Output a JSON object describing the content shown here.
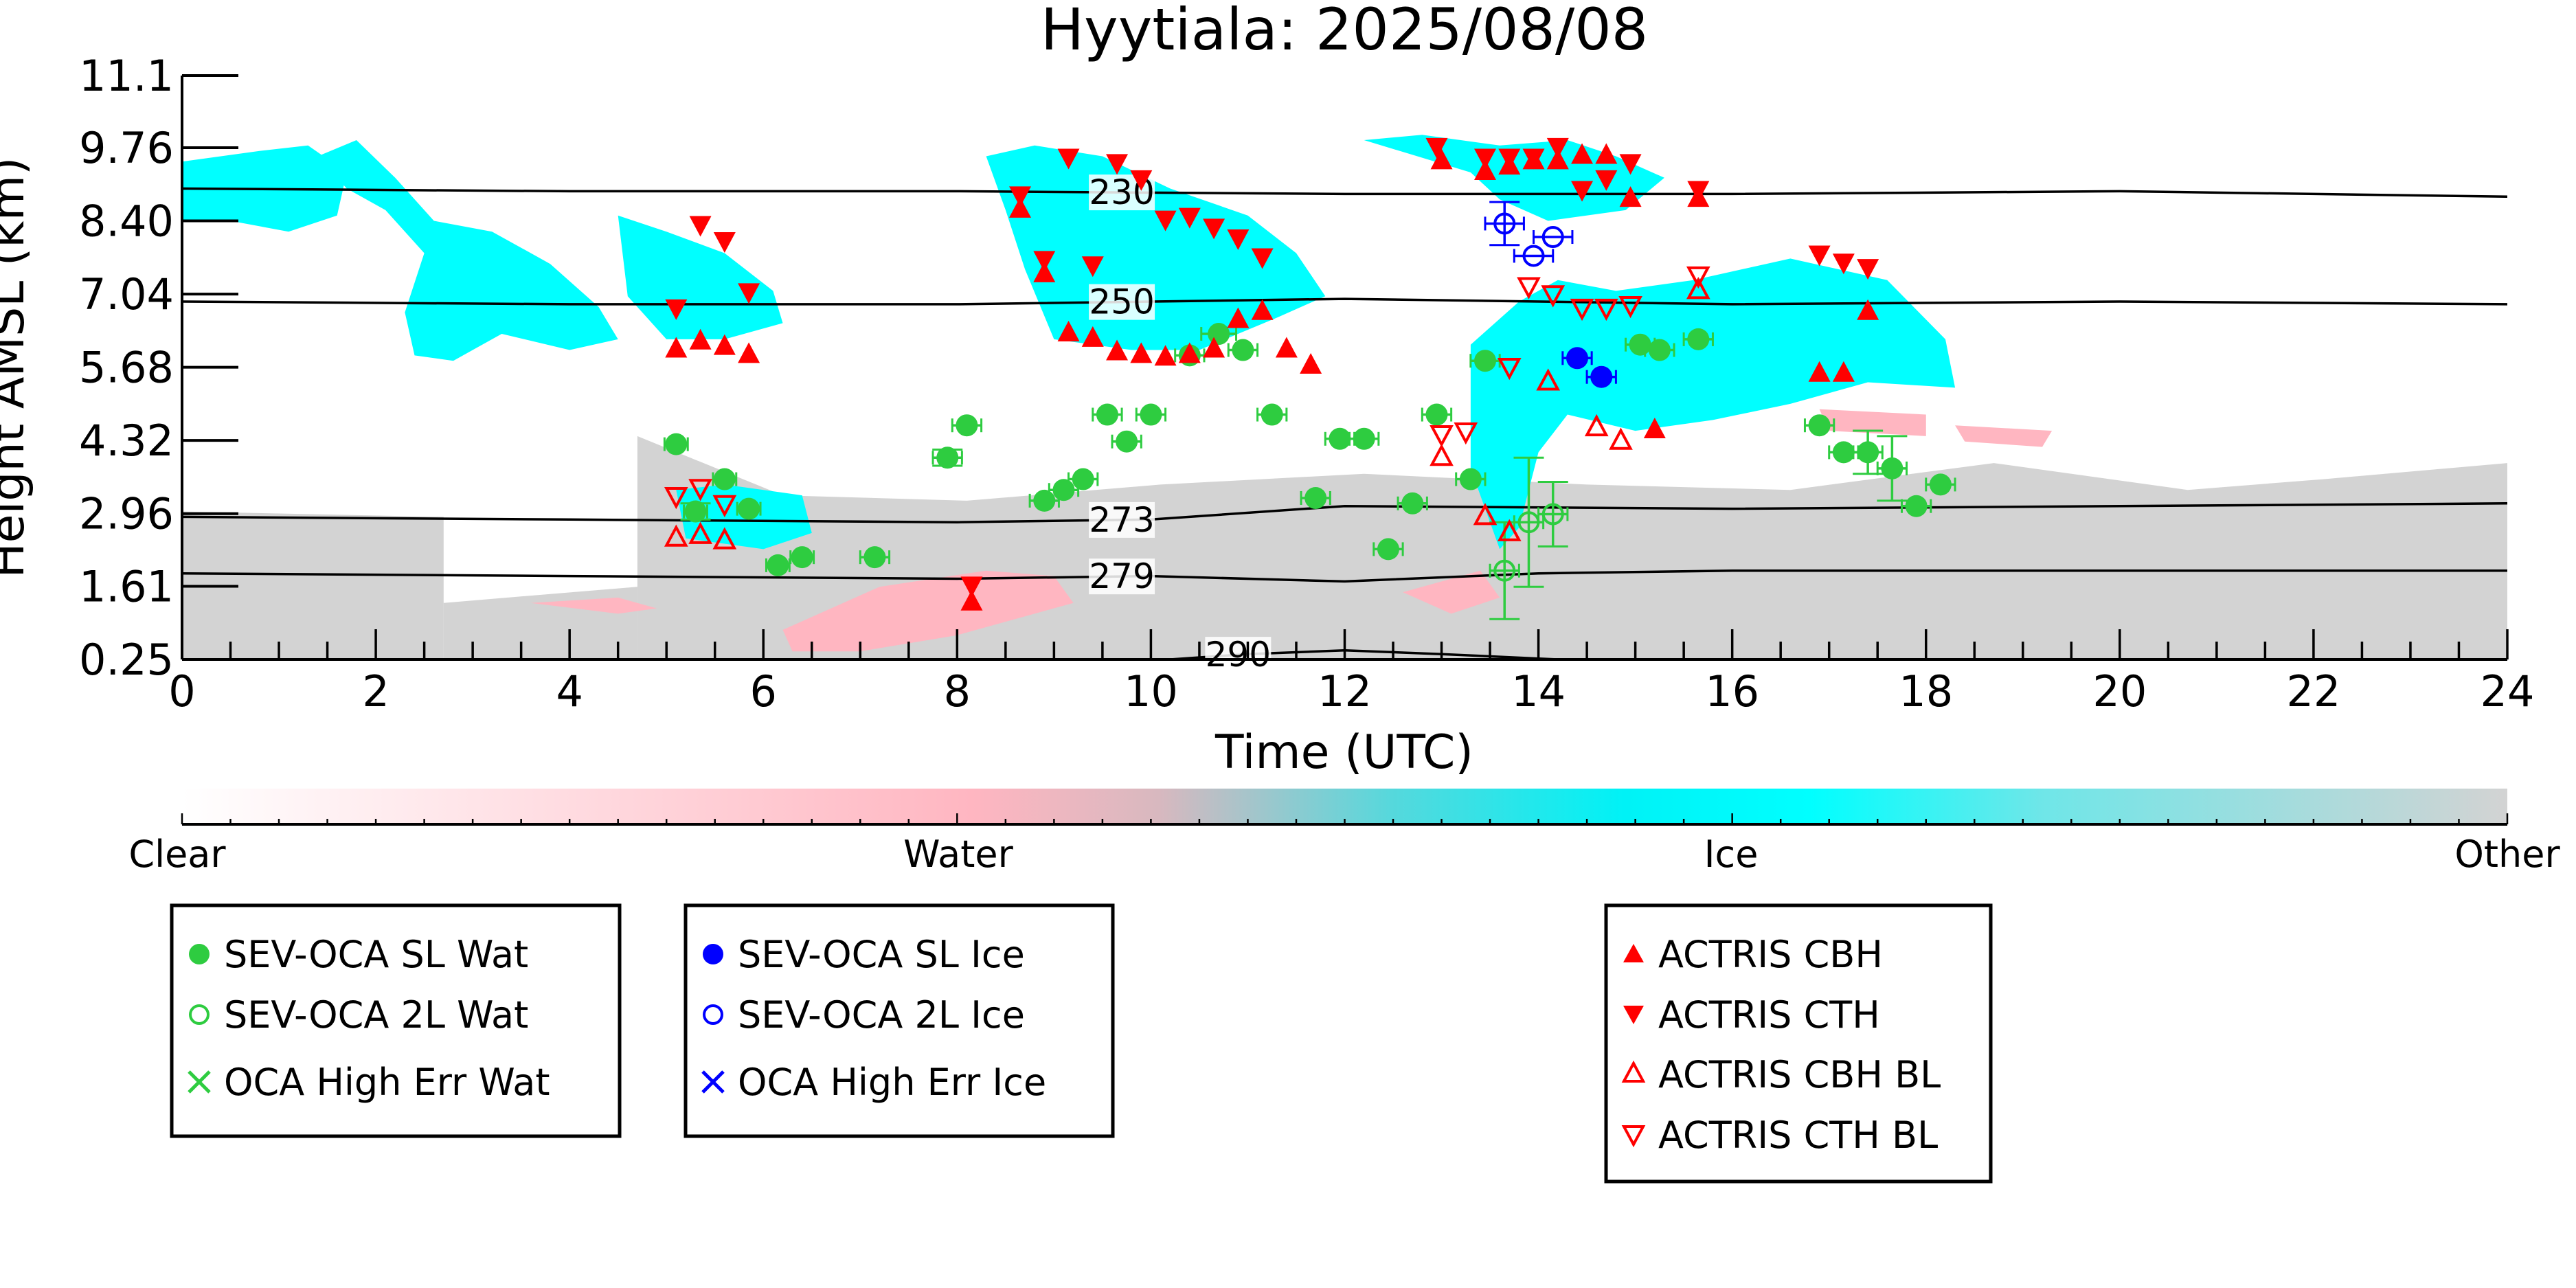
{
  "chart_data": {
    "type": "scatter",
    "title": "Hyytiala: 2025/08/08",
    "xlabel": "Time (UTC)",
    "ylabel": "Height AMSL (km)",
    "xlim": [
      0,
      24
    ],
    "ylim": [
      0.25,
      11.1
    ],
    "x_ticks": [
      0,
      2,
      4,
      6,
      8,
      10,
      12,
      14,
      16,
      18,
      20,
      22,
      24
    ],
    "y_ticks": [
      "0.25",
      "1.61",
      "2.96",
      "4.32",
      "5.68",
      "7.04",
      "8.40",
      "9.76",
      "11.1"
    ],
    "y_tick_values": [
      0.25,
      1.61,
      2.96,
      4.32,
      5.68,
      7.04,
      8.4,
      9.76,
      11.1
    ],
    "grid": false,
    "colorbar": {
      "labels": [
        "Clear",
        "Water",
        "Ice",
        "Other"
      ],
      "colors": [
        "#ffffff",
        "#ffb6c1",
        "#00ffff",
        "#d3d3d3"
      ]
    },
    "isotherms": [
      {
        "label": "230",
        "x": [
          0,
          4,
          8,
          12,
          16,
          20,
          24
        ],
        "y": [
          9.0,
          8.95,
          8.95,
          8.9,
          8.9,
          8.95,
          8.85
        ],
        "label_x": 9.7
      },
      {
        "label": "250",
        "x": [
          0,
          4,
          8,
          12,
          16,
          20,
          24
        ],
        "y": [
          6.9,
          6.85,
          6.85,
          6.95,
          6.85,
          6.9,
          6.85
        ],
        "label_x": 9.7
      },
      {
        "label": "273",
        "x": [
          0,
          4,
          8,
          10,
          12,
          16,
          20,
          24
        ],
        "y": [
          2.9,
          2.85,
          2.8,
          2.85,
          3.1,
          3.05,
          3.1,
          3.15
        ],
        "label_x": 9.7
      },
      {
        "label": "279",
        "x": [
          0,
          4,
          8,
          10,
          12,
          14,
          16,
          20,
          24
        ],
        "y": [
          1.85,
          1.8,
          1.75,
          1.8,
          1.7,
          1.85,
          1.9,
          1.9,
          1.9
        ],
        "label_x": 9.7
      },
      {
        "label": "290",
        "x": [
          10.2,
          11,
          12,
          13,
          14.2
        ],
        "y": [
          0.25,
          0.35,
          0.42,
          0.35,
          0.25
        ],
        "label_x": 10.9
      }
    ],
    "background": {
      "ice_regions": [
        {
          "x": [
            0,
            0.8,
            1.3,
            1.7,
            1.6,
            1.1,
            0.5,
            0
          ],
          "y": [
            9.5,
            9.7,
            9.8,
            9.3,
            8.5,
            8.2,
            8.4,
            8.4
          ]
        },
        {
          "x": [
            1.4,
            1.8,
            2.2,
            2.6,
            3.2,
            3.8,
            4.3,
            4.5,
            4.0,
            3.3,
            2.8,
            2.4,
            2.3,
            2.5,
            2.1,
            1.7
          ],
          "y": [
            9.6,
            9.9,
            9.2,
            8.4,
            8.2,
            7.6,
            6.8,
            6.2,
            6.0,
            6.3,
            5.8,
            5.9,
            6.7,
            7.8,
            8.6,
            9.0
          ]
        },
        {
          "x": [
            4.5,
            5.0,
            5.6,
            6.1,
            6.2,
            5.6,
            5.0,
            4.6
          ],
          "y": [
            8.5,
            8.2,
            7.8,
            7.1,
            6.5,
            6.2,
            6.2,
            7.0
          ]
        },
        {
          "x": [
            8.3,
            8.8,
            9.5,
            10.2,
            11.0,
            11.5,
            11.8,
            11.3,
            10.5,
            9.8,
            9.0,
            8.7,
            8.5
          ],
          "y": [
            9.6,
            9.8,
            9.6,
            9.0,
            8.5,
            7.8,
            7.0,
            6.6,
            6.0,
            6.0,
            6.2,
            7.5,
            8.6
          ]
        },
        {
          "x": [
            12.2,
            12.8,
            13.6,
            14.3,
            14.8,
            15.3,
            14.9,
            14.1,
            13.6,
            13.3
          ],
          "y": [
            9.9,
            10.0,
            9.8,
            9.9,
            9.6,
            9.2,
            8.6,
            8.4,
            8.8,
            9.3
          ]
        },
        {
          "x": [
            13.3,
            13.8,
            14.2,
            14.8,
            15.6,
            16.6,
            17.6,
            18.2,
            18.3,
            17.4,
            16.6,
            15.8,
            15.0,
            14.3,
            14.0,
            13.8,
            13.6,
            13.3
          ],
          "y": [
            6.1,
            6.9,
            7.3,
            7.1,
            7.3,
            7.7,
            7.3,
            6.2,
            5.3,
            5.4,
            5.0,
            4.7,
            4.5,
            4.8,
            4.1,
            2.7,
            2.3,
            3.8
          ]
        },
        {
          "x": [
            5.1,
            5.6,
            6.4,
            6.5,
            6.0,
            5.2
          ],
          "y": [
            3.4,
            3.5,
            3.3,
            2.6,
            2.3,
            2.5
          ]
        }
      ],
      "water_regions": [
        {
          "x": [
            6.2,
            7.2,
            8.3,
            9.0,
            9.2,
            8.0,
            7.0,
            6.3
          ],
          "y": [
            0.8,
            1.6,
            1.9,
            1.8,
            1.3,
            0.7,
            0.4,
            0.4
          ]
        },
        {
          "x": [
            3.6,
            4.5,
            4.9,
            4.5
          ],
          "y": [
            1.3,
            1.4,
            1.2,
            1.1
          ]
        },
        {
          "x": [
            12.6,
            13.4,
            13.6,
            13.1
          ],
          "y": [
            1.5,
            1.9,
            1.4,
            1.1
          ]
        },
        {
          "x": [
            16.9,
            18.0,
            18.0,
            17.0
          ],
          "y": [
            4.9,
            4.8,
            4.4,
            4.5
          ]
        },
        {
          "x": [
            18.3,
            19.3,
            19.2,
            18.4
          ],
          "y": [
            4.6,
            4.5,
            4.2,
            4.3
          ]
        }
      ],
      "other_regions": [
        {
          "x": [
            0,
            2.7,
            2.7,
            0
          ],
          "y": [
            3.0,
            2.9,
            0.25,
            0.25
          ]
        },
        {
          "x": [
            2.7,
            4.7,
            4.7,
            2.7
          ],
          "y": [
            1.3,
            1.6,
            0.25,
            0.25
          ]
        },
        {
          "x": [
            4.7,
            6.2,
            8.1,
            10.1,
            12.2,
            14.5,
            16.6,
            18.7,
            20.7,
            22.1,
            24,
            24,
            4.7
          ],
          "y": [
            4.4,
            3.3,
            3.2,
            3.5,
            3.7,
            3.5,
            3.4,
            3.9,
            3.4,
            3.6,
            3.9,
            0.25,
            0.25
          ]
        }
      ]
    },
    "series": [
      {
        "name": "SEV-OCA SL Wat",
        "marker": "filled-circle",
        "color": "#2ecc40",
        "x": [
          5.1,
          5.3,
          5.6,
          5.85,
          6.15,
          6.4,
          7.15,
          7.9,
          8.1,
          8.9,
          9.1,
          9.3,
          9.55,
          9.75,
          10.0,
          10.4,
          10.7,
          10.95,
          11.25,
          11.7,
          11.95,
          12.2,
          12.45,
          12.7,
          12.95,
          13.3,
          13.45,
          15.05,
          15.25,
          15.65,
          16.9,
          17.15,
          17.4,
          17.65,
          17.9,
          18.15
        ],
        "y": [
          4.25,
          3.0,
          3.6,
          3.05,
          2.0,
          2.15,
          2.15,
          4.0,
          4.6,
          3.2,
          3.4,
          3.6,
          4.8,
          4.3,
          4.8,
          5.9,
          6.3,
          6.0,
          4.8,
          3.25,
          4.35,
          4.35,
          2.3,
          3.15,
          4.8,
          3.6,
          5.8,
          6.1,
          6.0,
          6.2,
          4.6,
          4.1,
          4.1,
          3.8,
          3.1,
          3.5
        ],
        "xerr": [
          0.12,
          0.12,
          0.12,
          0.12,
          0.12,
          0.12,
          0.15,
          0.15,
          0.15,
          0.15,
          0.15,
          0.15,
          0.15,
          0.15,
          0.15,
          0.15,
          0.18,
          0.15,
          0.15,
          0.15,
          0.15,
          0.15,
          0.15,
          0.15,
          0.15,
          0.15,
          0.15,
          0.15,
          0.15,
          0.15,
          0.15,
          0.15,
          0.15,
          0.15,
          0.15,
          0.15
        ],
        "yerr": [
          0,
          0.15,
          0,
          0,
          0,
          0,
          0,
          0.15,
          0,
          0,
          0,
          0,
          0,
          0,
          0,
          0,
          0,
          0,
          0,
          0,
          0,
          0,
          0,
          0,
          0,
          0,
          0,
          0,
          0,
          0,
          0,
          0,
          0.4,
          0.6,
          0,
          0
        ]
      },
      {
        "name": "SEV-OCA 2L Wat",
        "marker": "open-circle",
        "color": "#2ecc40",
        "x": [
          13.65,
          13.9,
          14.15
        ],
        "y": [
          1.9,
          2.8,
          2.95
        ],
        "xerr": [
          0.15,
          0.15,
          0.15
        ],
        "yerr": [
          0.9,
          1.2,
          0.6
        ]
      },
      {
        "name": "OCA High Err Wat",
        "marker": "x",
        "color": "#2ecc40",
        "x": [],
        "y": []
      },
      {
        "name": "SEV-OCA SL Ice",
        "marker": "filled-circle",
        "color": "#0000ff",
        "x": [
          14.4,
          14.65
        ],
        "y": [
          5.85,
          5.5
        ],
        "xerr": [
          0.15,
          0.15
        ],
        "yerr": [
          0,
          0
        ]
      },
      {
        "name": "SEV-OCA 2L Ice",
        "marker": "open-circle",
        "color": "#0000ff",
        "x": [
          13.65,
          13.95,
          14.15
        ],
        "y": [
          8.35,
          7.75,
          8.1
        ],
        "xerr": [
          0.2,
          0.2,
          0.2
        ],
        "yerr": [
          0.4,
          0,
          0
        ]
      },
      {
        "name": "OCA High Err Ice",
        "marker": "x",
        "color": "#0000ff",
        "x": [],
        "y": []
      },
      {
        "name": "ACTRIS CBH",
        "marker": "filled-triangle-up",
        "color": "#ff0000",
        "x": [
          5.1,
          5.35,
          5.6,
          5.85,
          8.15,
          8.65,
          8.9,
          9.15,
          9.4,
          9.65,
          9.9,
          10.15,
          10.4,
          10.65,
          10.9,
          11.15,
          11.4,
          11.65,
          13.0,
          13.45,
          13.7,
          13.95,
          14.2,
          14.45,
          14.7,
          14.95,
          15.2,
          15.65,
          16.9,
          17.15,
          17.4
        ],
        "y": [
          6.0,
          6.15,
          6.05,
          5.9,
          1.3,
          8.6,
          7.4,
          6.3,
          6.2,
          5.95,
          5.9,
          5.85,
          5.9,
          6.0,
          6.55,
          6.7,
          6.0,
          5.7,
          9.5,
          9.3,
          9.4,
          9.5,
          9.5,
          9.6,
          9.6,
          8.8,
          4.5,
          8.8,
          5.55,
          5.55,
          6.7
        ],
        "xerr": [],
        "yerr": []
      },
      {
        "name": "ACTRIS CTH",
        "marker": "filled-triangle-down",
        "color": "#ff0000",
        "x": [
          5.1,
          5.35,
          5.6,
          5.85,
          8.15,
          8.65,
          8.9,
          9.15,
          9.4,
          9.65,
          9.9,
          10.15,
          10.4,
          10.65,
          10.9,
          11.15,
          12.95,
          13.45,
          13.7,
          13.95,
          14.2,
          14.45,
          14.7,
          14.95,
          15.65,
          16.9,
          17.15,
          17.4
        ],
        "y": [
          6.8,
          8.35,
          8.05,
          7.1,
          1.65,
          8.9,
          7.7,
          9.6,
          7.6,
          9.5,
          9.2,
          8.45,
          8.5,
          8.3,
          8.1,
          7.75,
          9.8,
          9.6,
          9.6,
          9.6,
          9.8,
          9.0,
          9.2,
          9.5,
          9.0,
          7.8,
          7.65,
          7.55
        ],
        "xerr": [],
        "yerr": []
      },
      {
        "name": "ACTRIS CBH BL",
        "marker": "open-triangle-up",
        "color": "#ff0000",
        "x": [
          5.1,
          5.35,
          5.6,
          13.0,
          13.45,
          13.7,
          14.1,
          14.6,
          14.85,
          15.65
        ],
        "y": [
          2.5,
          2.55,
          2.45,
          4.0,
          2.9,
          2.6,
          5.4,
          4.55,
          4.3,
          7.1
        ],
        "xerr": [],
        "yerr": []
      },
      {
        "name": "ACTRIS CTH BL",
        "marker": "open-triangle-down",
        "color": "#ff0000",
        "x": [
          5.1,
          5.35,
          5.6,
          13.0,
          13.25,
          13.7,
          13.9,
          14.15,
          14.45,
          14.7,
          14.95,
          15.65
        ],
        "y": [
          3.3,
          3.45,
          3.15,
          4.45,
          4.5,
          5.7,
          7.2,
          7.05,
          6.8,
          6.8,
          6.85,
          7.4
        ],
        "xerr": [],
        "yerr": []
      }
    ]
  },
  "legends": [
    {
      "entries": [
        "SEV-OCA SL Wat",
        "SEV-OCA 2L Wat",
        "OCA High Err Wat"
      ]
    },
    {
      "entries": [
        "SEV-OCA SL Ice",
        "SEV-OCA 2L Ice",
        "OCA High Err Ice"
      ]
    },
    {
      "entries": [
        "ACTRIS CBH",
        "ACTRIS CTH",
        "ACTRIS CBH BL",
        "ACTRIS CTH BL"
      ]
    }
  ]
}
